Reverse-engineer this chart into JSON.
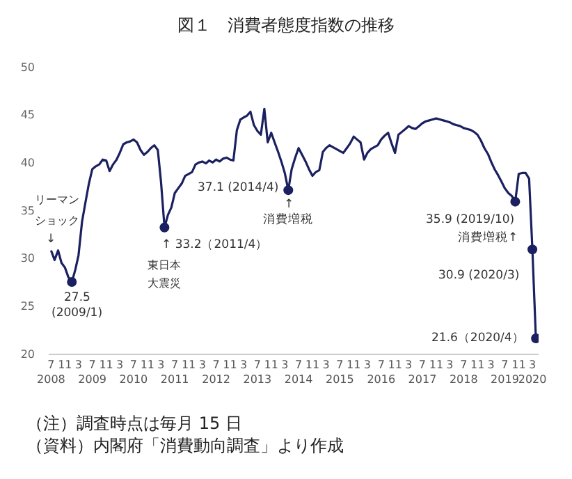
{
  "chart_data": {
    "type": "line",
    "title": "図１　消費者態度指数の推移",
    "xlim": [
      "2008-06-10",
      "2020-04-25"
    ],
    "ylim": [
      20,
      50
    ],
    "yticks": [
      20,
      25,
      30,
      35,
      40,
      45,
      50
    ],
    "xticks": [
      {
        "value": "2008-07",
        "label": "7\n2008"
      },
      {
        "value": "2008-11",
        "label": "11"
      },
      {
        "value": "2009-03",
        "label": "3"
      },
      {
        "value": "2009-07",
        "label": "7\n2009"
      },
      {
        "value": "2009-11",
        "label": "11"
      },
      {
        "value": "2010-03",
        "label": "3"
      },
      {
        "value": "2010-07",
        "label": "7\n2010"
      },
      {
        "value": "2010-11",
        "label": "11"
      },
      {
        "value": "2011-03",
        "label": "3"
      },
      {
        "value": "2011-07",
        "label": "7\n2011"
      },
      {
        "value": "2011-11",
        "label": "11"
      },
      {
        "value": "2012-03",
        "label": "3"
      },
      {
        "value": "2012-07",
        "label": "7\n2012"
      },
      {
        "value": "2012-11",
        "label": "11"
      },
      {
        "value": "2013-03",
        "label": "3"
      },
      {
        "value": "2013-07",
        "label": "7\n2013"
      },
      {
        "value": "2013-11",
        "label": "11"
      },
      {
        "value": "2014-03",
        "label": "3"
      },
      {
        "value": "2014-07",
        "label": "7\n2014"
      },
      {
        "value": "2014-11",
        "label": "11"
      },
      {
        "value": "2015-03",
        "label": "3"
      },
      {
        "value": "2015-07",
        "label": "7\n2015"
      },
      {
        "value": "2015-11",
        "label": "11"
      },
      {
        "value": "2016-03",
        "label": "3"
      },
      {
        "value": "2016-07",
        "label": "7\n2016"
      },
      {
        "value": "2016-11",
        "label": "11"
      },
      {
        "value": "2017-03",
        "label": "3"
      },
      {
        "value": "2017-07",
        "label": "7\n2017"
      },
      {
        "value": "2017-11",
        "label": "11"
      },
      {
        "value": "2018-03",
        "label": "3"
      },
      {
        "value": "2018-07",
        "label": "7\n2018"
      },
      {
        "value": "2018-11",
        "label": "11"
      },
      {
        "value": "2019-03",
        "label": "3"
      },
      {
        "value": "2019-07",
        "label": "7\n2019"
      },
      {
        "value": "2019-11",
        "label": "11"
      },
      {
        "value": "2020-03",
        "label": "3\n2020"
      }
    ],
    "marker": "none",
    "line_style": "solid",
    "series": [
      {
        "color": "#1b2060",
        "x": [
          "2008-07",
          "2008-08",
          "2008-09",
          "2008-10",
          "2008-11",
          "2008-12",
          "2009-01",
          "2009-02",
          "2009-03",
          "2009-04",
          "2009-05",
          "2009-06",
          "2009-07",
          "2009-08",
          "2009-09",
          "2009-10",
          "2009-11",
          "2009-12",
          "2010-01",
          "2010-02",
          "2010-03",
          "2010-04",
          "2010-05",
          "2010-06",
          "2010-07",
          "2010-08",
          "2010-09",
          "2010-10",
          "2010-11",
          "2010-12",
          "2011-01",
          "2011-02",
          "2011-03",
          "2011-04",
          "2011-05",
          "2011-06",
          "2011-07",
          "2011-08",
          "2011-09",
          "2011-10",
          "2011-11",
          "2011-12",
          "2012-01",
          "2012-02",
          "2012-03",
          "2012-04",
          "2012-05",
          "2012-06",
          "2012-07",
          "2012-08",
          "2012-09",
          "2012-10",
          "2012-11",
          "2012-12",
          "2013-01",
          "2013-02",
          "2013-03",
          "2013-04",
          "2013-05",
          "2013-06",
          "2013-07",
          "2013-08",
          "2013-09",
          "2013-10",
          "2013-11",
          "2013-12",
          "2014-01",
          "2014-02",
          "2014-03",
          "2014-04",
          "2014-05",
          "2014-06",
          "2014-07",
          "2014-08",
          "2014-09",
          "2014-10",
          "2014-11",
          "2014-12",
          "2015-01",
          "2015-02",
          "2015-03",
          "2015-04",
          "2015-05",
          "2015-06",
          "2015-07",
          "2015-08",
          "2015-09",
          "2015-10",
          "2015-11",
          "2015-12",
          "2016-01",
          "2016-02",
          "2016-03",
          "2016-04",
          "2016-05",
          "2016-06",
          "2016-07",
          "2016-08",
          "2016-09",
          "2016-10",
          "2016-11",
          "2016-12",
          "2017-01",
          "2017-02",
          "2017-03",
          "2017-04",
          "2017-05",
          "2017-06",
          "2017-07",
          "2017-08",
          "2017-09",
          "2017-10",
          "2017-11",
          "2017-12",
          "2018-01",
          "2018-02",
          "2018-03",
          "2018-04",
          "2018-05",
          "2018-06",
          "2018-07",
          "2018-08",
          "2018-09",
          "2018-10",
          "2018-11",
          "2018-12",
          "2019-01",
          "2019-02",
          "2019-03",
          "2019-04",
          "2019-05",
          "2019-06",
          "2019-07",
          "2019-08",
          "2019-09",
          "2019-10",
          "2019-11",
          "2019-12",
          "2020-01",
          "2020-02",
          "2020-03",
          "2020-04"
        ],
        "values": [
          30.8,
          29.8,
          30.8,
          29.5,
          29.0,
          28.0,
          27.5,
          28.8,
          30.3,
          33.8,
          35.8,
          37.8,
          39.3,
          39.6,
          39.8,
          40.3,
          40.2,
          39.1,
          39.8,
          40.3,
          41.0,
          41.9,
          42.1,
          42.2,
          42.4,
          42.1,
          41.3,
          40.8,
          41.1,
          41.5,
          41.8,
          41.3,
          38.0,
          33.2,
          34.5,
          35.3,
          36.8,
          37.3,
          37.8,
          38.6,
          38.8,
          39.0,
          39.8,
          40.0,
          40.1,
          39.9,
          40.2,
          40.0,
          40.3,
          40.1,
          40.4,
          40.5,
          40.3,
          40.2,
          43.4,
          44.5,
          44.7,
          44.9,
          45.3,
          43.9,
          43.3,
          42.9,
          45.6,
          42.1,
          43.1,
          42.1,
          41.1,
          40.0,
          38.9,
          37.1,
          39.3,
          40.5,
          41.5,
          40.8,
          40.1,
          39.3,
          38.6,
          39.0,
          39.2,
          41.1,
          41.5,
          41.8,
          41.6,
          41.4,
          41.2,
          41.0,
          41.5,
          42.0,
          42.7,
          42.4,
          42.1,
          40.3,
          41.0,
          41.4,
          41.6,
          41.8,
          42.4,
          42.8,
          43.1,
          42.0,
          41.0,
          42.9,
          43.2,
          43.5,
          43.8,
          43.6,
          43.5,
          43.8,
          44.1,
          44.3,
          44.4,
          44.5,
          44.6,
          44.5,
          44.4,
          44.3,
          44.2,
          44.0,
          43.9,
          43.8,
          43.6,
          43.5,
          43.4,
          43.2,
          42.9,
          42.3,
          41.5,
          40.9,
          40.1,
          39.3,
          38.7,
          38.0,
          37.3,
          36.8,
          36.5,
          35.9,
          38.8,
          38.9,
          38.9,
          38.3,
          30.9,
          21.6
        ]
      },
      {
        "type": "scatter",
        "color": "#1b2060",
        "marker": "circle",
        "x": [
          "2009-01",
          "2011-04",
          "2014-04",
          "2019-10",
          "2020-03",
          "2020-04"
        ],
        "values": [
          27.5,
          33.2,
          37.1,
          35.9,
          30.9,
          21.6
        ]
      }
    ],
    "annotations": [
      {
        "text": "↓",
        "x": "2008-07",
        "y": 30.8
      },
      {
        "text": "27.5",
        "x": "2009-01",
        "y": 27.5
      },
      {
        "text": "(2009/1)",
        "x": "2009-01",
        "y": 27.5
      },
      {
        "text": "↑ 33.2（2011/4）",
        "x": "2011-04",
        "y": 33.2
      },
      {
        "text": "37.1 (2014/4)",
        "x": "2014-04",
        "y": 37.1
      },
      {
        "text": "↑",
        "x": "2014-04",
        "y": 37.1
      },
      {
        "text": "消費増税",
        "x": "2014-04",
        "y": 37.1
      },
      {
        "text": "35.9 (2019/10)",
        "x": "2019-10",
        "y": 35.9
      },
      {
        "text": "消費増税↑",
        "x": "2019-10",
        "y": 35.9
      },
      {
        "text": "30.9 (2020/3)",
        "x": "2020-03",
        "y": 30.9
      },
      {
        "text": "21.6（2020/4）",
        "x": "2020-04",
        "y": 21.6
      },
      "リーマン",
      "ショック",
      "東日本",
      "大震災",
      "（注）調査時点は毎月 15 日",
      "（資料）内閣府「消費動向調査」より作成"
    ]
  }
}
